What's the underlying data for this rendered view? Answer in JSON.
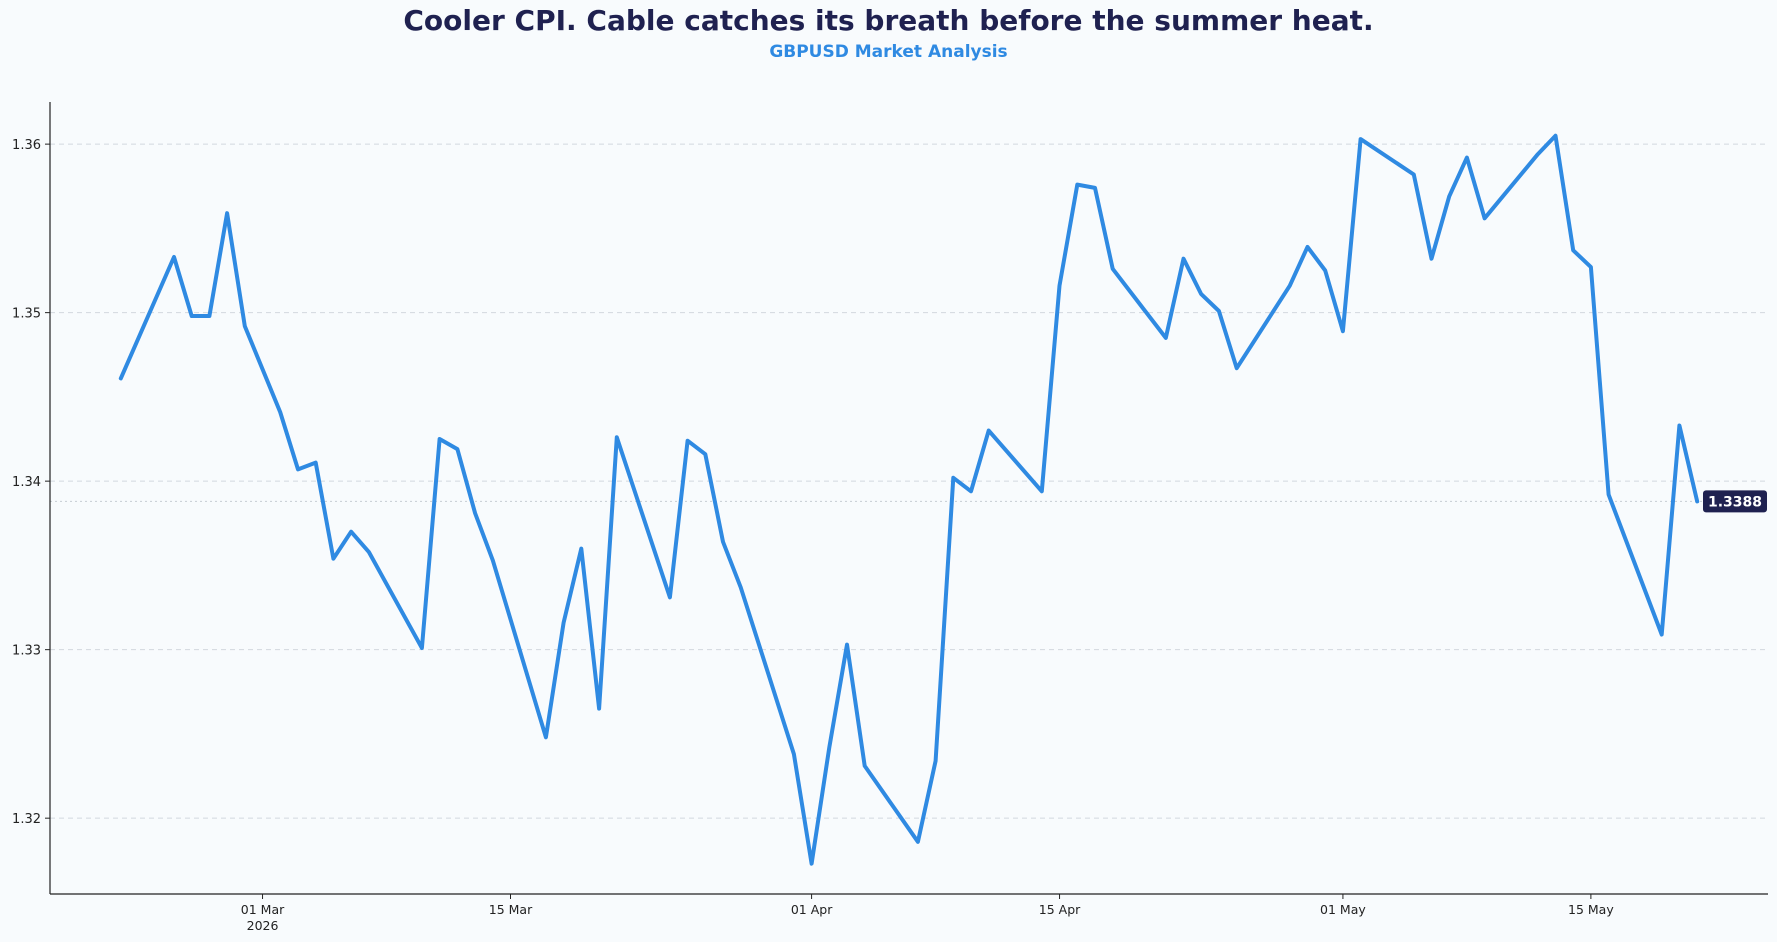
{
  "title": "Cooler CPI. Cable catches its breath before the summer heat.",
  "subtitle": "GBPUSD Market Analysis",
  "colors": {
    "line": "#2f8ae2",
    "title": "#1f2150",
    "subtitle": "#2f8ae2",
    "label_bg": "#1f2150"
  },
  "chart_data": {
    "type": "line",
    "title": "Cooler CPI. Cable catches its breath before the summer heat.",
    "subtitle": "GBPUSD Market Analysis",
    "xlabel": "",
    "ylabel": "",
    "ylim": [
      1.3155,
      1.3625
    ],
    "xlim": [
      "2026-02-17",
      "2026-05-25"
    ],
    "yticks": [
      1.32,
      1.33,
      1.34,
      1.35,
      1.36
    ],
    "ytick_labels": [
      "1.32",
      "1.33",
      "1.34",
      "1.35",
      "1.36"
    ],
    "xticks": [
      "2026-03-01",
      "2026-03-15",
      "2026-04-01",
      "2026-04-15",
      "2026-05-01",
      "2026-05-15"
    ],
    "xtick_labels": [
      "01 Mar",
      "15 Mar",
      "01 Apr",
      "15 Apr",
      "01 May",
      "15 May"
    ],
    "year_label": "2026",
    "grid": "horizontal dashed",
    "last_value_label": "1.3388",
    "series": [
      {
        "points": [
          [
            "2026-02-21",
            1.3461
          ],
          [
            "2026-02-24",
            1.3533
          ],
          [
            "2026-02-25",
            1.3498
          ],
          [
            "2026-02-26",
            1.3498
          ],
          [
            "2026-02-27",
            1.3559
          ],
          [
            "2026-02-28",
            1.3492
          ],
          [
            "2026-03-02",
            1.3441
          ],
          [
            "2026-03-03",
            1.3407
          ],
          [
            "2026-03-04",
            1.3411
          ],
          [
            "2026-03-05",
            1.3354
          ],
          [
            "2026-03-06",
            1.337
          ],
          [
            "2026-03-07",
            1.3358
          ],
          [
            "2026-03-10",
            1.3301
          ],
          [
            "2026-03-11",
            1.3425
          ],
          [
            "2026-03-12",
            1.3419
          ],
          [
            "2026-03-13",
            1.3381
          ],
          [
            "2026-03-14",
            1.3353
          ],
          [
            "2026-03-17",
            1.3248
          ],
          [
            "2026-03-18",
            1.3316
          ],
          [
            "2026-03-19",
            1.336
          ],
          [
            "2026-03-20",
            1.3265
          ],
          [
            "2026-03-21",
            1.3426
          ],
          [
            "2026-03-24",
            1.3331
          ],
          [
            "2026-03-25",
            1.3424
          ],
          [
            "2026-03-26",
            1.3416
          ],
          [
            "2026-03-27",
            1.3364
          ],
          [
            "2026-03-28",
            1.3337
          ],
          [
            "2026-03-31",
            1.3238
          ],
          [
            "2026-04-01",
            1.3173
          ],
          [
            "2026-04-02",
            1.3242
          ],
          [
            "2026-04-03",
            1.3303
          ],
          [
            "2026-04-04",
            1.3231
          ],
          [
            "2026-04-07",
            1.3186
          ],
          [
            "2026-04-08",
            1.3234
          ],
          [
            "2026-04-09",
            1.3402
          ],
          [
            "2026-04-10",
            1.3394
          ],
          [
            "2026-04-11",
            1.343
          ],
          [
            "2026-04-14",
            1.3394
          ],
          [
            "2026-04-15",
            1.3516
          ],
          [
            "2026-04-16",
            1.3576
          ],
          [
            "2026-04-17",
            1.3574
          ],
          [
            "2026-04-18",
            1.3526
          ],
          [
            "2026-04-21",
            1.3485
          ],
          [
            "2026-04-22",
            1.3532
          ],
          [
            "2026-04-23",
            1.3511
          ],
          [
            "2026-04-24",
            1.3501
          ],
          [
            "2026-04-25",
            1.3467
          ],
          [
            "2026-04-28",
            1.3516
          ],
          [
            "2026-04-29",
            1.3539
          ],
          [
            "2026-04-30",
            1.3525
          ],
          [
            "2026-05-01",
            1.3489
          ],
          [
            "2026-05-02",
            1.3603
          ],
          [
            "2026-05-05",
            1.3582
          ],
          [
            "2026-05-06",
            1.3532
          ],
          [
            "2026-05-07",
            1.3569
          ],
          [
            "2026-05-08",
            1.3592
          ],
          [
            "2026-05-09",
            1.3556
          ],
          [
            "2026-05-12",
            1.3594
          ],
          [
            "2026-05-13",
            1.3605
          ],
          [
            "2026-05-14",
            1.3537
          ],
          [
            "2026-05-15",
            1.3527
          ],
          [
            "2026-05-16",
            1.3392
          ],
          [
            "2026-05-19",
            1.3309
          ],
          [
            "2026-05-20",
            1.3433
          ],
          [
            "2026-05-21",
            1.3388
          ]
        ]
      }
    ]
  }
}
